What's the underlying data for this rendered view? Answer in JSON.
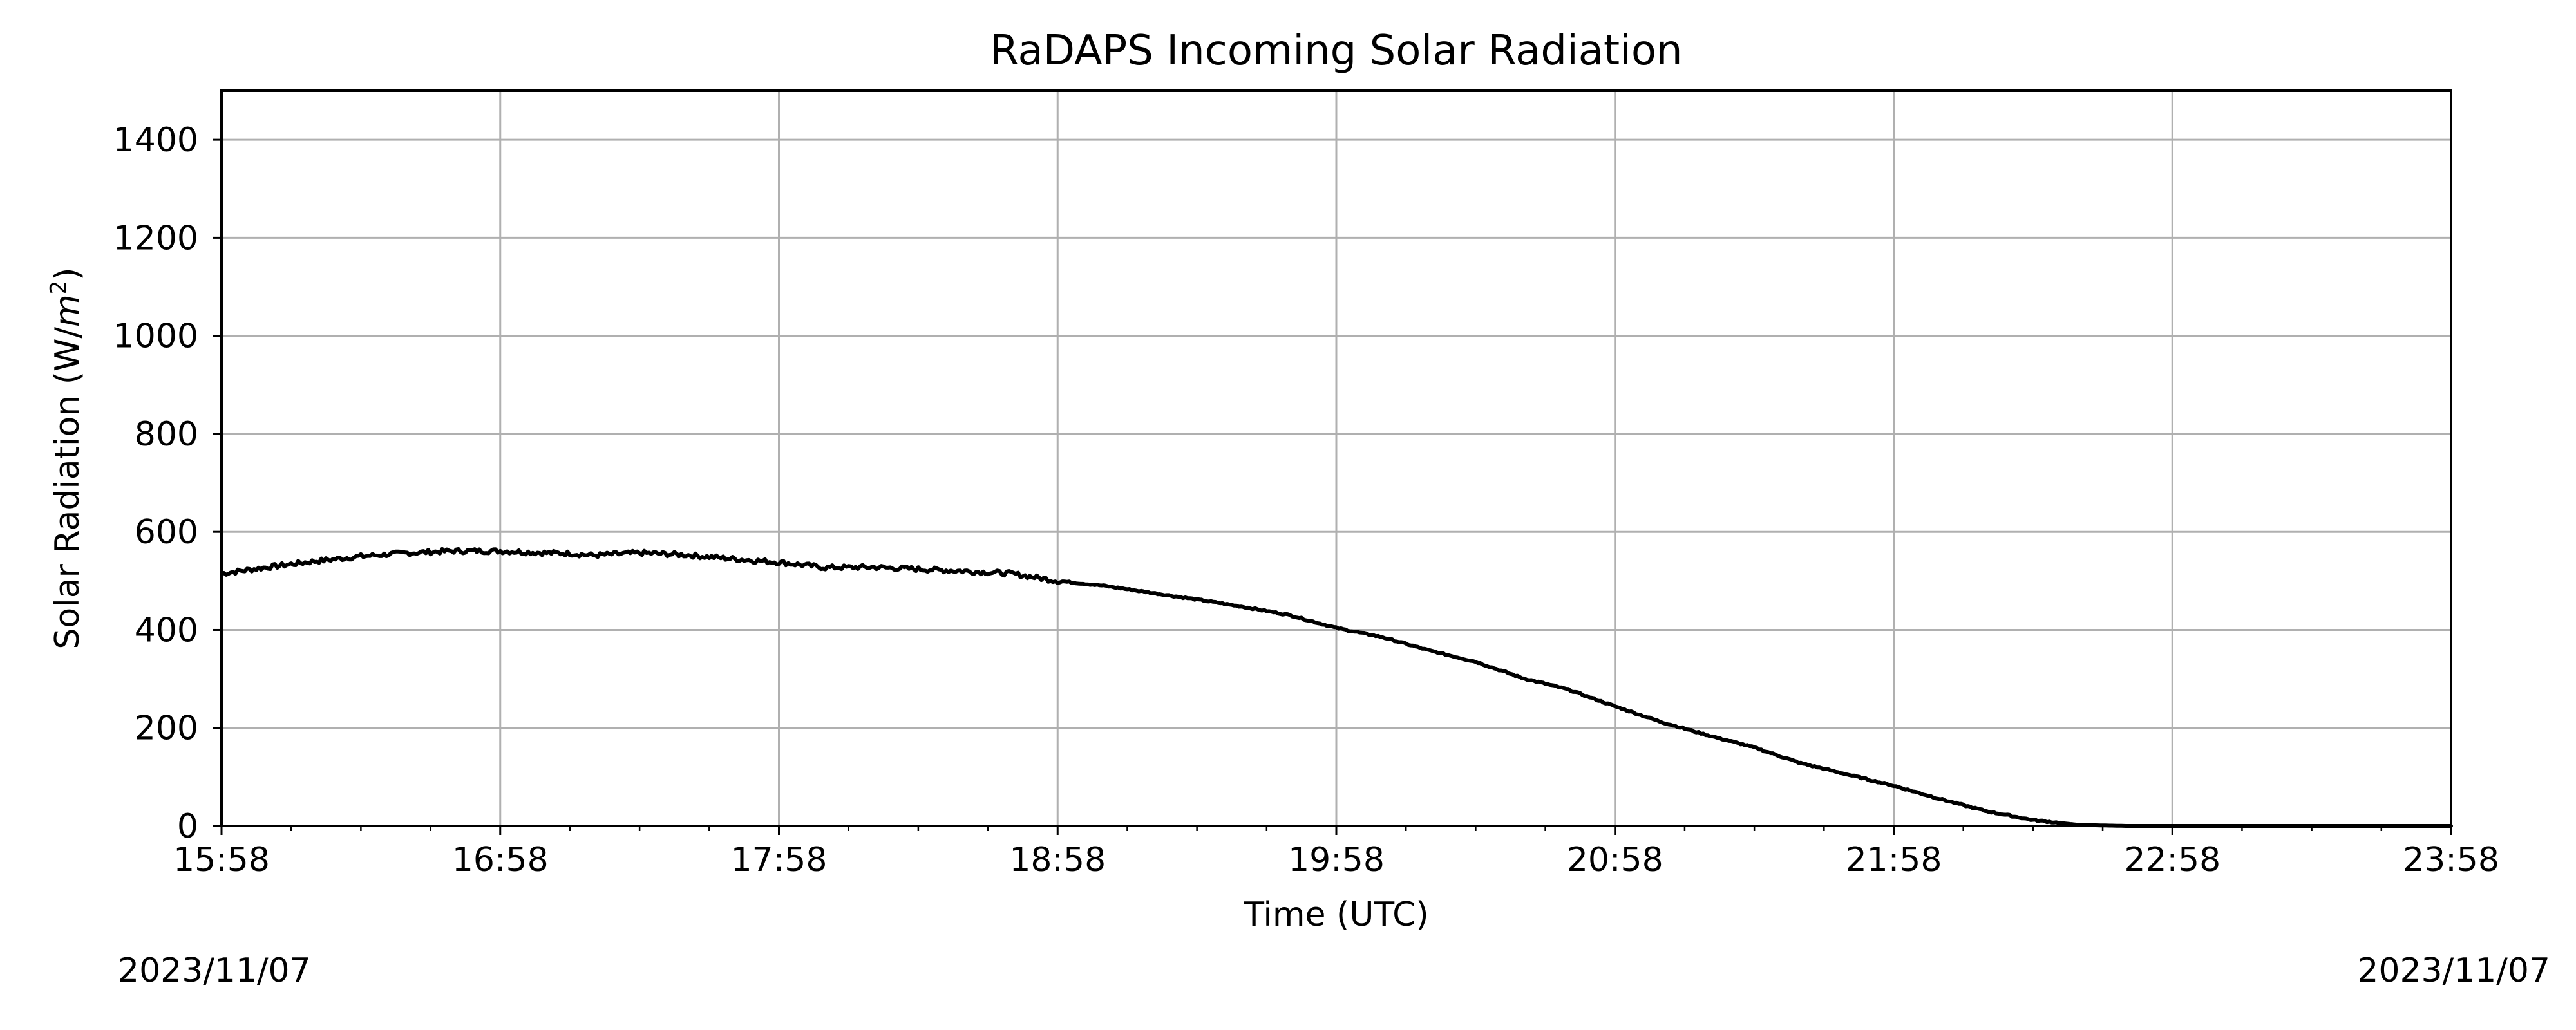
{
  "chart_data": {
    "type": "line",
    "title": "RaDAPS Incoming Solar Radiation",
    "xlabel": "Time (UTC)",
    "ylabel": "Solar Radiation (W/m²)",
    "ylabel_parts": {
      "prefix": "Solar Radiation (W/",
      "var": "m",
      "sup": "2",
      "suffix": ")"
    },
    "x_ticks": [
      "15:58",
      "16:58",
      "17:58",
      "18:58",
      "19:58",
      "20:58",
      "21:58",
      "22:58",
      "23:58"
    ],
    "y_ticks": [
      0,
      200,
      400,
      600,
      800,
      1000,
      1200,
      1400
    ],
    "xlim": [
      "15:58",
      "23:58"
    ],
    "ylim": [
      0,
      1500
    ],
    "grid": true,
    "series": [
      {
        "color": "#000000",
        "x": [
          "15:58",
          "16:08",
          "16:18",
          "16:28",
          "16:38",
          "16:48",
          "16:58",
          "17:08",
          "17:13",
          "17:18",
          "17:28",
          "17:38",
          "17:48",
          "17:58",
          "18:08",
          "18:18",
          "18:28",
          "18:38",
          "18:48",
          "18:58",
          "19:08",
          "19:18",
          "19:28",
          "19:38",
          "19:48",
          "19:58",
          "20:08",
          "20:18",
          "20:28",
          "20:38",
          "20:48",
          "20:58",
          "21:08",
          "21:18",
          "21:28",
          "21:38",
          "21:48",
          "21:58",
          "22:08",
          "22:18",
          "22:28",
          "22:38",
          "22:48",
          "22:58",
          "23:08",
          "23:18",
          "23:28",
          "23:38",
          "23:48",
          "23:58"
        ],
        "y": [
          515,
          528,
          540,
          550,
          557,
          561,
          561,
          557,
          556,
          552,
          557,
          553,
          545,
          538,
          527,
          528,
          524,
          520,
          515,
          500,
          490,
          476,
          462,
          447,
          430,
          404,
          385,
          358,
          335,
          302,
          278,
          244,
          212,
          185,
          160,
          128,
          105,
          82,
          55,
          30,
          12,
          2,
          0,
          0,
          0,
          0,
          0,
          0,
          0,
          0
        ]
      }
    ]
  },
  "footer": {
    "date_start": "2023/11/07",
    "date_end": "2023/11/07"
  }
}
